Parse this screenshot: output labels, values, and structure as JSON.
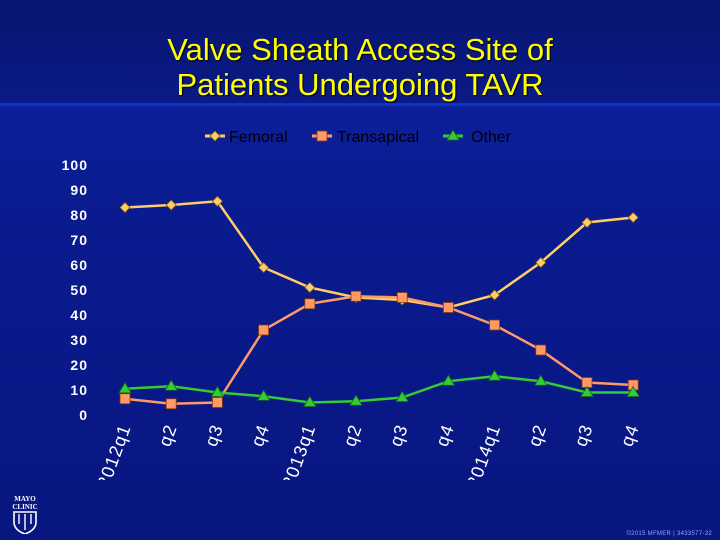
{
  "title_line1": "Valve Sheath Access Site of",
  "title_line2": "Patients Undergoing TAVR",
  "footer": "©2015 MFMER | 3433577-32",
  "logo_text": [
    "MAYO",
    "CLINIC"
  ],
  "colors": {
    "background": "#0a1a8a",
    "title": "#ffff00",
    "femoral": "#ffcc66",
    "transapical": "#ff9966",
    "other": "#33cc33",
    "axis_text": "#ffffff"
  },
  "chart_data": {
    "type": "line",
    "categories": [
      "2012q1",
      "q2",
      "q3",
      "q4",
      "2013q1",
      "q2",
      "q3",
      "q4",
      "2014q1",
      "q2",
      "q3",
      "q4"
    ],
    "ylim": [
      0,
      100
    ],
    "yticks": [
      0,
      10,
      20,
      30,
      40,
      50,
      60,
      70,
      80,
      90,
      100
    ],
    "legend_position": "top",
    "grid": false,
    "series": [
      {
        "name": "Femoral",
        "marker": "diamond",
        "color": "#ffcc66",
        "values": [
          83,
          84,
          85.5,
          59,
          51,
          47,
          46,
          43,
          48,
          61,
          77,
          79
        ]
      },
      {
        "name": "Transapical",
        "marker": "square",
        "color": "#ff9966",
        "values": [
          6.5,
          4.5,
          5,
          34,
          44.5,
          47.5,
          47,
          43,
          36,
          26,
          13,
          12
        ]
      },
      {
        "name": "Other",
        "marker": "triangle",
        "color": "#33cc33",
        "values": [
          10.5,
          11.5,
          9,
          7.5,
          5,
          5.5,
          7,
          13.5,
          15.5,
          13.5,
          9,
          9
        ]
      }
    ]
  }
}
